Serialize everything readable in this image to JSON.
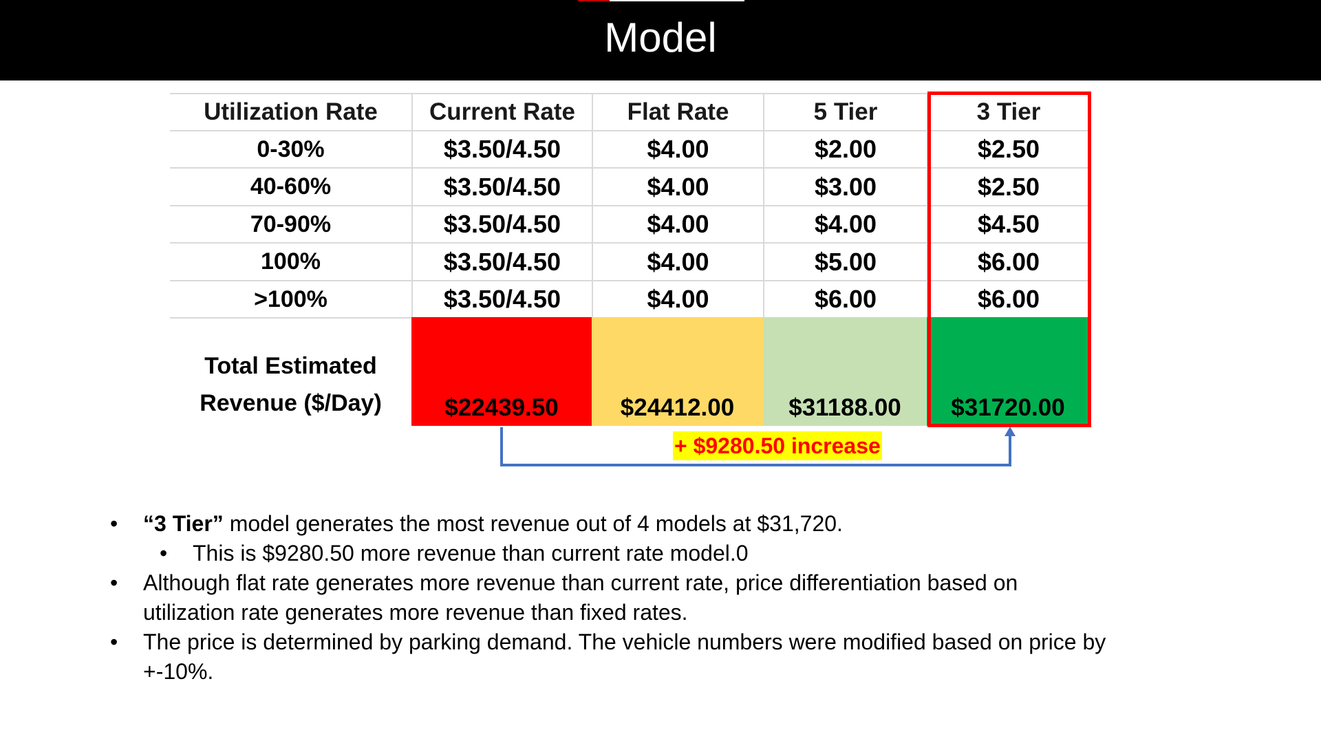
{
  "slide": {
    "title": "Model"
  },
  "table": {
    "headers": [
      "Utilization Rate",
      "Current Rate",
      "Flat Rate",
      "5 Tier",
      "3 Tier"
    ],
    "rows": [
      [
        "0-30%",
        "$3.50/4.50",
        "$4.00",
        "$2.00",
        "$2.50"
      ],
      [
        "40-60%",
        "$3.50/4.50",
        "$4.00",
        "$3.00",
        "$2.50"
      ],
      [
        "70-90%",
        "$3.50/4.50",
        "$4.00",
        "$4.00",
        "$4.50"
      ],
      [
        "100%",
        "$3.50/4.50",
        "$4.00",
        "$5.00",
        "$6.00"
      ],
      [
        ">100%",
        "$3.50/4.50",
        "$4.00",
        "$6.00",
        "$6.00"
      ]
    ],
    "revenue_label_line1": "Total Estimated",
    "revenue_label_line2": "Revenue ($/Day)",
    "revenues": [
      "$22439.50",
      "$24412.00",
      "$31188.00",
      "$31720.00"
    ],
    "revenue_colors": [
      "#ff0000",
      "#ffd966",
      "#c6e0b4",
      "#00b050"
    ],
    "highlight_color": "#ff0000"
  },
  "comparison": {
    "label": "+ $9280.50 increase",
    "arrow_color": "#4472c4",
    "label_bg": "#ffff00",
    "label_color": "#ff0000"
  },
  "bullets": {
    "b1_bold": "“3 Tier”",
    "b1_rest": " model generates the most revenue out of 4 models at $31,720.",
    "b1_sub": "This is $9280.50 more revenue than current rate model.0",
    "b2": "Although flat rate generates more revenue than current rate, price differentiation based on utilization rate generates more revenue than fixed rates.",
    "b3": "The price is determined by parking demand. The vehicle numbers were modified based on price by +-10%.",
    "marker": "•"
  }
}
